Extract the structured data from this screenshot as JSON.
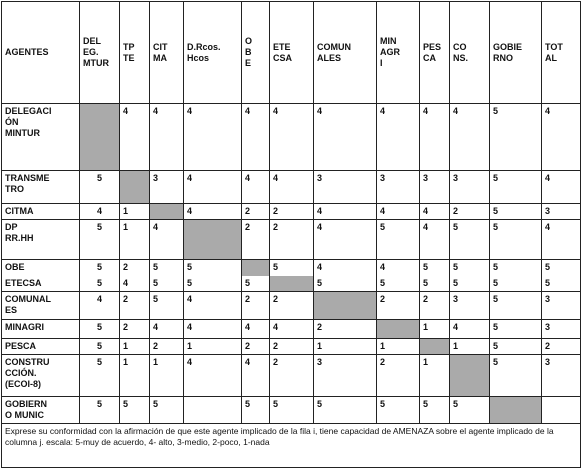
{
  "table": {
    "headers": [
      "AGENTES",
      "DEL\nEG.\nMTUR",
      "TP\nTE",
      "CIT\nMA",
      "D.Rcos.\nHcos",
      "O\nB\nE",
      "ETE\nCSA",
      "COMUN\nALES",
      "MIN\nAGR\nI",
      "PES\nCA",
      "CO\nNS.",
      "GOBIE\nRNO",
      "TOT\nAL"
    ],
    "rows": [
      {
        "label": "DELEGACI\nÓN\nMINTUR",
        "shaded_column": 0,
        "cells": [
          null,
          4,
          4,
          4,
          4,
          4,
          4,
          4,
          4,
          4,
          5,
          4
        ]
      },
      {
        "label": "TRANSME\nTRO",
        "shaded_column": 1,
        "cells": [
          5,
          null,
          3,
          4,
          4,
          4,
          3,
          3,
          3,
          3,
          5,
          4
        ]
      },
      {
        "label": "CITMA",
        "shaded_column": 2,
        "cells": [
          4,
          1,
          null,
          4,
          2,
          2,
          4,
          4,
          4,
          2,
          5,
          3
        ]
      },
      {
        "label": "DP\nRR.HH",
        "shaded_column": 3,
        "cells": [
          5,
          1,
          4,
          null,
          2,
          2,
          4,
          5,
          4,
          5,
          5,
          4
        ]
      },
      {
        "label": "OBE",
        "shaded_column": 4,
        "cells": [
          5,
          2,
          5,
          5,
          null,
          5,
          4,
          4,
          5,
          5,
          5,
          5
        ]
      },
      {
        "label": "ETECSA",
        "shaded_column": 5,
        "cells": [
          5,
          4,
          5,
          5,
          5,
          null,
          5,
          5,
          5,
          5,
          5,
          5
        ]
      },
      {
        "label": "COMUNAL\nES",
        "shaded_column": 6,
        "cells": [
          4,
          2,
          5,
          4,
          2,
          2,
          null,
          2,
          2,
          3,
          5,
          3
        ]
      },
      {
        "label": "MINAGRI",
        "shaded_column": 7,
        "cells": [
          5,
          2,
          4,
          4,
          4,
          4,
          2,
          null,
          1,
          4,
          5,
          3
        ]
      },
      {
        "label": "PESCA",
        "shaded_column": 8,
        "cells": [
          5,
          1,
          2,
          1,
          2,
          2,
          1,
          1,
          null,
          1,
          5,
          2
        ]
      },
      {
        "label": "CONSTRU\nCCIÓN.\n(ECOI-8)",
        "shaded_column": 9,
        "cells": [
          5,
          1,
          1,
          4,
          4,
          2,
          3,
          2,
          1,
          null,
          5,
          3
        ]
      },
      {
        "label": "GOBIERN\nO MUNIC",
        "shaded_column": 10,
        "cells": [
          5,
          5,
          5,
          null,
          5,
          5,
          5,
          5,
          5,
          5,
          null,
          null
        ]
      }
    ],
    "footnote": "Exprese su conformidad con la afirmación de que este agente implicado de la fila i, tiene capacidad de AMENAZA sobre el agente implicado de la columna j. escala: 5-muy de acuerdo, 4- alto, 3-medio, 2-poco, 1-nada"
  }
}
